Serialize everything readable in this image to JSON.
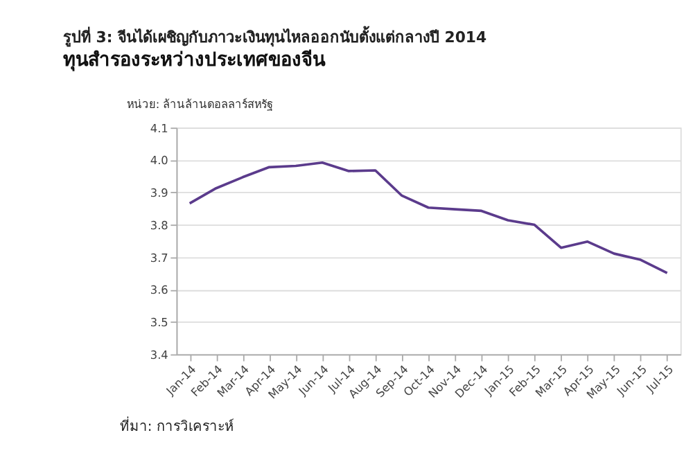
{
  "chart_data": {
    "type": "line",
    "title": "รูปที่ 3: จีนได้เผชิญกับภาวะเงินทุนไหลออกนับตั้งแต่กลางปี 2014",
    "subtitle": "ทุนสำรองระหว่างประเทศของจีน",
    "ylabel": "หน่วย: ล้านล้านดอลลาร์สหรัฐ",
    "categories": [
      "Jan-14",
      "Feb-14",
      "Mar-14",
      "Apr-14",
      "May-14",
      "Jun-14",
      "Jul-14",
      "Aug-14",
      "Sep-14",
      "Oct-14",
      "Nov-14",
      "Dec-14",
      "Jan-15",
      "Feb-15",
      "Mar-15",
      "Apr-15",
      "May-15",
      "Jun-15",
      "Jul-15"
    ],
    "series": [
      {
        "color": "#5b3b8c",
        "values": [
          3.866,
          3.913,
          3.947,
          3.978,
          3.982,
          3.992,
          3.966,
          3.968,
          3.89,
          3.853,
          3.848,
          3.843,
          3.814,
          3.8,
          3.729,
          3.748,
          3.711,
          3.692,
          3.651
        ]
      }
    ],
    "ylim": [
      3.4,
      4.1
    ],
    "yticks": [
      {
        "value": 3.4,
        "label": "3.4"
      },
      {
        "value": 3.5,
        "label": "3.5"
      },
      {
        "value": 3.6,
        "label": "3.6"
      },
      {
        "value": 3.7,
        "label": "3.7"
      },
      {
        "value": 3.8,
        "label": "3.8"
      },
      {
        "value": 3.9,
        "label": "3.9"
      },
      {
        "value": 4.0,
        "label": "4.0"
      },
      {
        "value": 4.1,
        "label": "4.1"
      }
    ],
    "grid": "y",
    "marker": "none",
    "line_style": "solid",
    "annotations": [
      "ที่มา: การวิเคราะห์"
    ]
  }
}
